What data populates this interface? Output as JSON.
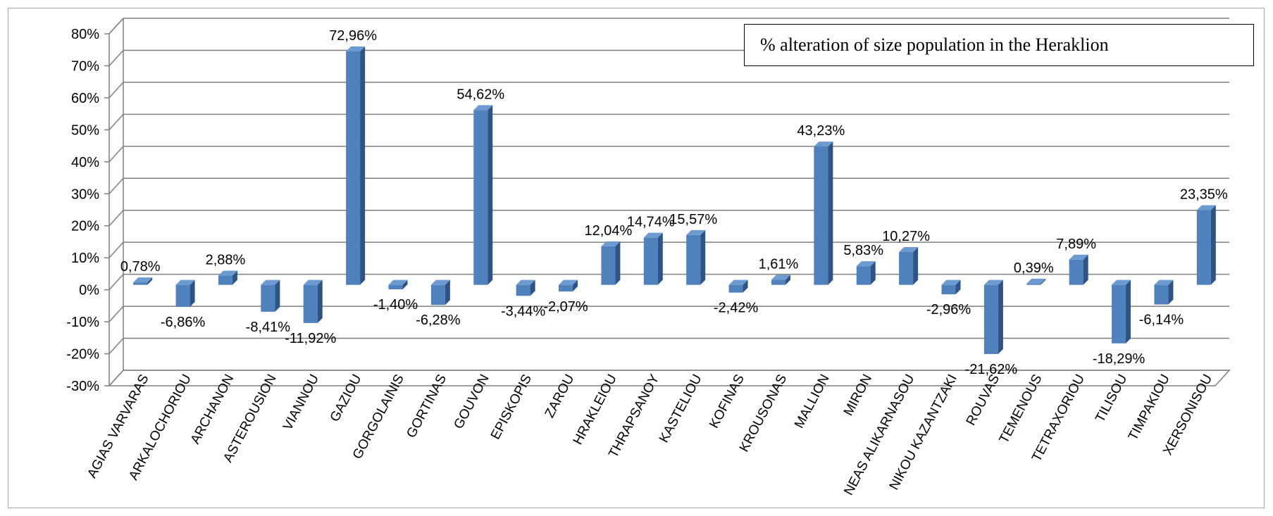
{
  "chart_data": {
    "type": "bar",
    "title": "% alteration of size population in the Heraklion",
    "xlabel": "",
    "ylabel": "",
    "ylim": [
      -30,
      80
    ],
    "yticks": [
      "80%",
      "70%",
      "60%",
      "50%",
      "40%",
      "30%",
      "20%",
      "10%",
      "0%",
      "-10%",
      "-20%",
      "-30%"
    ],
    "categories": [
      "AGIAS VARVARAS",
      "ARKALOCHORIOU",
      "ARCHANON",
      "ASTEROUSION",
      "VIANNOU",
      "GAZIOU",
      "GORGOLAINIS",
      "GORTINAS",
      "GOUVON",
      "EPISKOPIS",
      "ZAROU",
      "HRAKLEIOU",
      "THRAPSANOY",
      "KASTELIOU",
      "KOFINAS",
      "KROUSONAS",
      "MALLION",
      "MIRON",
      "NEAS ALIKARNASOU",
      "NIKOU KAZANTZAKI",
      "ROUVAS",
      "TEMENOUS",
      "TETRAXORIOU",
      "TILISOU",
      "TIMPAKIOU",
      "XERSONISOU"
    ],
    "values": [
      0.78,
      -6.86,
      2.88,
      -8.41,
      -11.92,
      72.96,
      -1.4,
      -6.28,
      54.62,
      -3.44,
      -2.07,
      12.04,
      14.74,
      15.57,
      -2.42,
      1.61,
      43.23,
      5.83,
      10.27,
      -2.96,
      -21.62,
      0.39,
      7.89,
      -18.29,
      -6.14,
      23.35
    ],
    "data_labels": [
      "0,78%",
      "-6,86%",
      "2,88%",
      "-8,41%",
      "-11,92%",
      "72,96%",
      "-1,40%",
      "-6,28%",
      "54,62%",
      "-3,44%",
      "-2,07%",
      "12,04%",
      "14,74%",
      "15,57%",
      "-2,42%",
      "1,61%",
      "43,23%",
      "5,83%",
      "10,27%",
      "-2,96%",
      "-21,62%",
      "0,39%",
      "7,89%",
      "-18,29%",
      "-6,14%",
      "23,35%"
    ],
    "grid": true,
    "legend": "none",
    "bar_color": "#4f81bd",
    "bar_side_color": "#2f5483",
    "bar_top_color": "#6d9bd1",
    "gridline_color": "#7f7f7f"
  }
}
